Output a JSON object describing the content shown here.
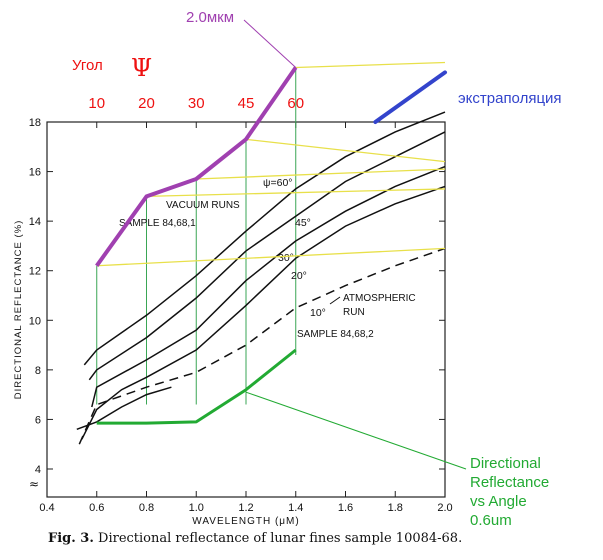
{
  "chart_data": {
    "type": "line",
    "title": "",
    "xlabel": "WAVELENGTH (μM)",
    "ylabel": "DIRECTIONAL REFLECTANCE (%)",
    "xlim": [
      0.4,
      2.0
    ],
    "ylim": [
      4,
      18
    ],
    "x_ticks": [
      "0.4",
      "0.6",
      "0.8",
      "1.0",
      "1.2",
      "1.4",
      "1.6",
      "1.8",
      "2.0"
    ],
    "y_ticks": [
      "4",
      "6",
      "8",
      "10",
      "12",
      "14",
      "16",
      "18"
    ],
    "axis_break_symbol": "≈",
    "series": [
      {
        "name": "ψ=60°",
        "style": "solid",
        "x": [
          0.55,
          0.6,
          0.8,
          1.0,
          1.2,
          1.4,
          1.6,
          1.8,
          2.0
        ],
        "y": [
          8.2,
          8.8,
          10.2,
          11.8,
          13.6,
          15.3,
          16.6,
          17.6,
          18.4
        ]
      },
      {
        "name": "45°",
        "style": "solid",
        "x": [
          0.57,
          0.6,
          0.8,
          1.0,
          1.2,
          1.4,
          1.6,
          1.8,
          2.0
        ],
        "y": [
          7.6,
          8.0,
          9.3,
          10.9,
          12.8,
          14.2,
          15.6,
          16.6,
          17.6
        ]
      },
      {
        "name": "30°",
        "style": "solid",
        "x": [
          0.58,
          0.6,
          0.8,
          1.0,
          1.2,
          1.4,
          1.6,
          1.8,
          2.0
        ],
        "y": [
          6.5,
          7.3,
          8.4,
          9.6,
          11.6,
          13.2,
          14.4,
          15.4,
          16.2
        ]
      },
      {
        "name": "20°",
        "style": "solid",
        "x": [
          0.54,
          0.6,
          0.7,
          0.8,
          1.0,
          1.2,
          1.4,
          1.6,
          1.8,
          2.0
        ],
        "y": [
          5.2,
          6.4,
          7.2,
          7.7,
          8.8,
          10.6,
          12.5,
          13.8,
          14.7,
          15.4
        ]
      },
      {
        "name": "10°",
        "style": "dashed",
        "x": [
          0.53,
          0.6,
          0.8,
          1.0,
          1.2,
          1.4,
          1.6,
          1.8,
          2.0
        ],
        "y": [
          5.0,
          6.6,
          7.3,
          7.9,
          9.0,
          10.5,
          11.4,
          12.2,
          12.9
        ]
      },
      {
        "name": "Atmospheric run",
        "style": "solid",
        "x": [
          0.52,
          0.6,
          0.7,
          0.8,
          0.9
        ],
        "y": [
          5.6,
          5.9,
          6.5,
          7.0,
          7.3
        ]
      }
    ],
    "annotations": {
      "vacuum_runs": "VACUUM RUNS",
      "sample_vacuum": "SAMPLE  84,68,1",
      "atmospheric_run_line1": "ATMOSPHERIC",
      "atmospheric_run_line2": "RUN",
      "sample_atmospheric": "SAMPLE  84,68,2"
    },
    "caption_fig_no": "Fig. 3.",
    "caption_text": "Directional reflectance of lunar fines sample 10084-68.",
    "overlay": {
      "angle_label": "Угол",
      "psi_symbol": "Ψ",
      "angles": [
        "10",
        "20",
        "30",
        "45",
        "60"
      ],
      "angle_positions_um": [
        0.6,
        0.8,
        1.0,
        1.2,
        1.4
      ],
      "purple_label": "2.0мкм",
      "purple_series_y": [
        12.2,
        15.0,
        15.7,
        17.3,
        20.2
      ],
      "green_series_y": [
        5.85,
        5.85,
        5.9,
        7.2,
        8.8
      ],
      "extrapolation_label": "экстраполяция",
      "extrapolation_x": [
        1.72,
        2.0
      ],
      "extrapolation_y": [
        18.0,
        20.0
      ],
      "green_label_lines": [
        "Directional",
        "Reflectance",
        "vs Angle",
        "0.6um"
      ],
      "yellow_lines_y_start": [
        12.2,
        15.0,
        15.7,
        17.3,
        20.2
      ],
      "yellow_lines_y_end": [
        12.9,
        15.3,
        16.1,
        16.4,
        20.4
      ],
      "colors": {
        "red": "#ee1111",
        "purple": "#a040b0",
        "green": "#22aa33",
        "blue": "#3344cc",
        "yellow": "#e8e04a",
        "thin_green": "#3aa655"
      }
    }
  }
}
